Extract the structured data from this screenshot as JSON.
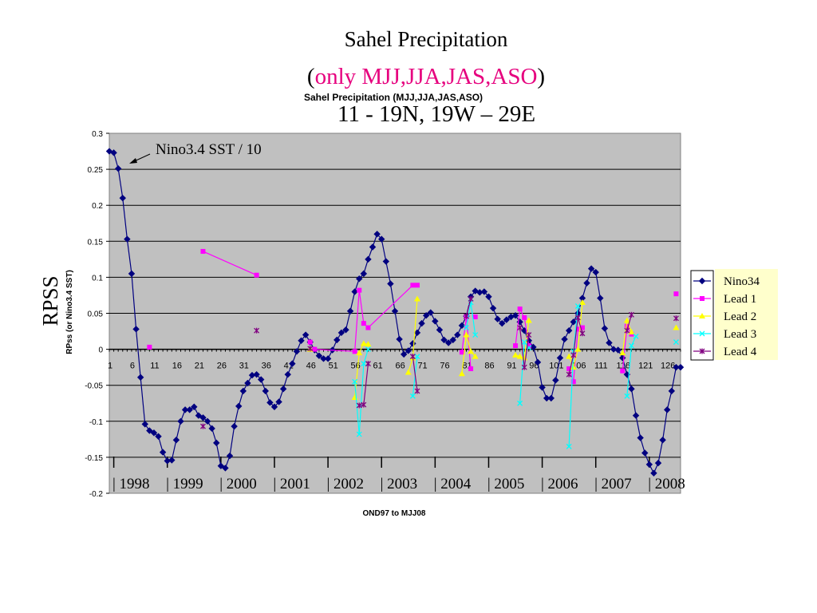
{
  "slide": {
    "title_line1": "Sahel Precipitation",
    "title_line2_open": "(",
    "title_line2_main": "only MJJ,JJA,JAS,ASO",
    "title_line2_close": ")",
    "chart_title": "Sahel Precipitation (MJJ,JJA,JAS,ASO)",
    "title_line3": "11 - 19N,  19W – 29E",
    "big_ylabel": "RPSS",
    "annotation": "Nino3.4 SST / 10",
    "highlight_color": "#e6007e"
  },
  "chart_data": {
    "type": "line",
    "title": "Sahel Precipitation (MJJ,JJA,JAS,ASO)",
    "xlabel": "OND97 to MJJ08",
    "ylabel": "RPss (or Nino3.4 SST)",
    "ylim": [
      -0.2,
      0.3
    ],
    "xlim": [
      1,
      129
    ],
    "grid": true,
    "legend_position": "right",
    "y_ticks": [
      -0.2,
      -0.15,
      -0.1,
      -0.05,
      0,
      0.05,
      0.1,
      0.15,
      0.2,
      0.25,
      0.3
    ],
    "y_tick_labels": [
      "-0.2",
      "-0.15",
      "-0.1",
      "-0.05",
      "0",
      "0.05",
      "0.1",
      "0.15",
      "0.2",
      "0.25",
      "0.3"
    ],
    "x_ticks": [
      1,
      6,
      11,
      16,
      21,
      26,
      31,
      36,
      41,
      46,
      51,
      56,
      61,
      66,
      71,
      76,
      81,
      86,
      91,
      96,
      101,
      106,
      111,
      116,
      121,
      126
    ],
    "x_tick_labels": [
      "1",
      "6",
      "11",
      "16",
      "21",
      "26",
      "31",
      "36",
      "41",
      "46",
      "51",
      "56",
      "61",
      "66",
      "71",
      "76",
      "81",
      "86",
      "91",
      "96",
      "101",
      "106",
      "111",
      "116",
      "121",
      "126"
    ],
    "year_labels": [
      "1998",
      "1999",
      "2000",
      "2001",
      "2002",
      "2003",
      "2004",
      "2005",
      "2006",
      "2007",
      "2008"
    ],
    "year_positions": [
      1,
      13,
      25,
      37,
      49,
      61,
      73,
      85,
      97,
      109,
      121
    ],
    "series": [
      {
        "name": "Nino34",
        "color": "#000080",
        "marker": "diamond",
        "x": [
          1,
          2,
          3,
          4,
          5,
          6,
          7,
          8,
          9,
          10,
          11,
          12,
          13,
          14,
          15,
          16,
          17,
          18,
          19,
          20,
          21,
          22,
          23,
          24,
          25,
          26,
          27,
          28,
          29,
          30,
          31,
          32,
          33,
          34,
          35,
          36,
          37,
          38,
          39,
          40,
          41,
          42,
          43,
          44,
          45,
          46,
          47,
          48,
          49,
          50,
          51,
          52,
          53,
          54,
          55,
          56,
          57,
          58,
          59,
          60,
          61,
          62,
          63,
          64,
          65,
          66,
          67,
          68,
          69,
          70,
          71,
          72,
          73,
          74,
          75,
          76,
          77,
          78,
          79,
          80,
          81,
          82,
          83,
          84,
          85,
          86,
          87,
          88,
          89,
          90,
          91,
          92,
          93,
          94,
          95,
          96,
          97,
          98,
          99,
          100,
          101,
          102,
          103,
          104,
          105,
          106,
          107,
          108,
          109,
          110,
          111,
          112,
          113,
          114,
          115,
          116,
          117,
          118,
          119,
          120,
          121,
          122,
          123,
          124,
          125,
          126,
          127,
          128,
          129
        ],
        "y": [
          0.275,
          0.273,
          0.251,
          0.21,
          0.153,
          0.105,
          0.028,
          -0.039,
          -0.104,
          -0.113,
          -0.116,
          -0.121,
          -0.143,
          -0.155,
          -0.154,
          -0.126,
          -0.1,
          -0.084,
          -0.084,
          -0.08,
          -0.092,
          -0.095,
          -0.1,
          -0.11,
          -0.13,
          -0.162,
          -0.165,
          -0.148,
          -0.107,
          -0.079,
          -0.058,
          -0.047,
          -0.036,
          -0.035,
          -0.042,
          -0.058,
          -0.074,
          -0.08,
          -0.073,
          -0.055,
          -0.035,
          -0.02,
          -0.003,
          0.012,
          0.02,
          0.01,
          -0.001,
          -0.009,
          -0.013,
          -0.013,
          -0.001,
          0.013,
          0.023,
          0.027,
          0.053,
          0.08,
          0.098,
          0.105,
          0.125,
          0.142,
          0.16,
          0.153,
          0.122,
          0.091,
          0.053,
          0.014,
          -0.007,
          -0.002,
          0.008,
          0.023,
          0.036,
          0.047,
          0.051,
          0.039,
          0.027,
          0.013,
          0.009,
          0.013,
          0.02,
          0.033,
          0.046,
          0.073,
          0.081,
          0.079,
          0.08,
          0.073,
          0.057,
          0.042,
          0.036,
          0.041,
          0.045,
          0.047,
          0.038,
          0.026,
          0.012,
          0.003,
          -0.018,
          -0.053,
          -0.068,
          -0.068,
          -0.043,
          -0.012,
          0.014,
          0.026,
          0.038,
          0.05,
          0.071,
          0.092,
          0.112,
          0.107,
          0.071,
          0.029,
          0.009,
          0,
          -0.001,
          -0.012,
          -0.035,
          -0.055,
          -0.092,
          -0.123,
          -0.144,
          -0.16,
          -0.172,
          -0.158,
          -0.126,
          -0.084,
          -0.058,
          -0.025,
          -0.025
        ]
      },
      {
        "name": "Lead 1",
        "color": "#ff00ff",
        "marker": "square",
        "x": [
          10,
          22,
          34,
          46,
          47,
          56,
          57,
          58,
          59,
          69,
          70,
          80,
          81,
          82,
          83,
          92,
          93,
          94,
          95,
          104,
          105,
          106,
          107,
          116,
          117,
          118,
          128
        ],
        "y": [
          0.003,
          0.136,
          0.103,
          0.01,
          0,
          -0.003,
          0.082,
          0.036,
          0.03,
          0.089,
          0.089,
          -0.004,
          0.045,
          -0.027,
          0.045,
          0.005,
          0.056,
          0.044,
          0.005,
          -0.027,
          -0.045,
          0.028,
          0.03,
          -0.03,
          0.032,
          0.021,
          0.077
        ],
        "segments": [
          [
            1,
            2
          ],
          [
            4,
            5
          ],
          [
            5,
            6
          ],
          [
            6,
            7
          ],
          [
            8,
            9
          ],
          [
            11,
            12
          ],
          [
            12,
            13
          ],
          [
            15,
            16
          ],
          [
            16,
            17
          ],
          [
            17,
            18
          ],
          [
            19,
            20
          ],
          [
            20,
            21
          ],
          [
            21,
            22
          ],
          [
            23,
            24
          ],
          [
            24,
            25
          ]
        ]
      },
      {
        "name": "Lead 2",
        "color": "#ffff00",
        "marker": "triangle",
        "x": [
          46,
          56,
          57,
          58,
          59,
          68,
          69,
          70,
          80,
          81,
          82,
          83,
          92,
          93,
          94,
          95,
          104,
          105,
          106,
          107,
          116,
          117,
          118,
          128
        ],
        "y": [
          0,
          -0.067,
          -0.005,
          0.008,
          0.007,
          -0.032,
          -0.012,
          0.07,
          -0.034,
          0.02,
          -0.003,
          -0.01,
          -0.008,
          -0.01,
          -0.012,
          0.04,
          -0.01,
          -0.025,
          0,
          0.065,
          -0.005,
          0.04,
          0.024,
          0.03
        ],
        "segments": [
          [
            1,
            2
          ],
          [
            2,
            3
          ],
          [
            3,
            4
          ],
          [
            5,
            6
          ],
          [
            6,
            7
          ],
          [
            8,
            9
          ],
          [
            9,
            10
          ],
          [
            10,
            11
          ],
          [
            12,
            13
          ],
          [
            13,
            14
          ],
          [
            14,
            15
          ],
          [
            16,
            17
          ],
          [
            17,
            18
          ],
          [
            18,
            19
          ],
          [
            20,
            21
          ],
          [
            21,
            22
          ]
        ]
      },
      {
        "name": "Lead 3",
        "color": "#00ffff",
        "marker": "x",
        "x": [
          56,
          57,
          58,
          59,
          69,
          70,
          81,
          82,
          83,
          93,
          94,
          95,
          104,
          105,
          106,
          117,
          118,
          119,
          128
        ],
        "y": [
          -0.045,
          -0.118,
          -0.02,
          0,
          -0.065,
          -0.01,
          0.03,
          0.065,
          0.02,
          -0.075,
          0.01,
          0.002,
          -0.135,
          -0.003,
          0.06,
          -0.065,
          0.005,
          0.018,
          0.01
        ],
        "segments": [
          [
            0,
            1
          ],
          [
            1,
            2
          ],
          [
            2,
            3
          ],
          [
            4,
            5
          ],
          [
            6,
            7
          ],
          [
            7,
            8
          ],
          [
            9,
            10
          ],
          [
            10,
            11
          ],
          [
            12,
            13
          ],
          [
            13,
            14
          ],
          [
            15,
            16
          ],
          [
            16,
            17
          ]
        ]
      },
      {
        "name": "Lead 4",
        "color": "#800080",
        "marker": "star",
        "x": [
          22,
          34,
          46,
          57,
          58,
          59,
          69,
          70,
          81,
          82,
          93,
          94,
          95,
          104,
          105,
          106,
          107,
          117,
          118,
          128
        ],
        "y": [
          -0.107,
          0.026,
          0.001,
          -0.078,
          -0.077,
          -0.02,
          -0.01,
          -0.058,
          0.046,
          0.07,
          0.03,
          -0.025,
          0.02,
          -0.035,
          -0.008,
          0.044,
          0.022,
          0.026,
          0.048,
          0.043
        ],
        "segments": [
          [
            3,
            4
          ],
          [
            4,
            5
          ],
          [
            6,
            7
          ],
          [
            8,
            9
          ],
          [
            10,
            11
          ],
          [
            11,
            12
          ],
          [
            13,
            14
          ],
          [
            14,
            15
          ],
          [
            15,
            16
          ],
          [
            17,
            18
          ]
        ]
      }
    ]
  }
}
